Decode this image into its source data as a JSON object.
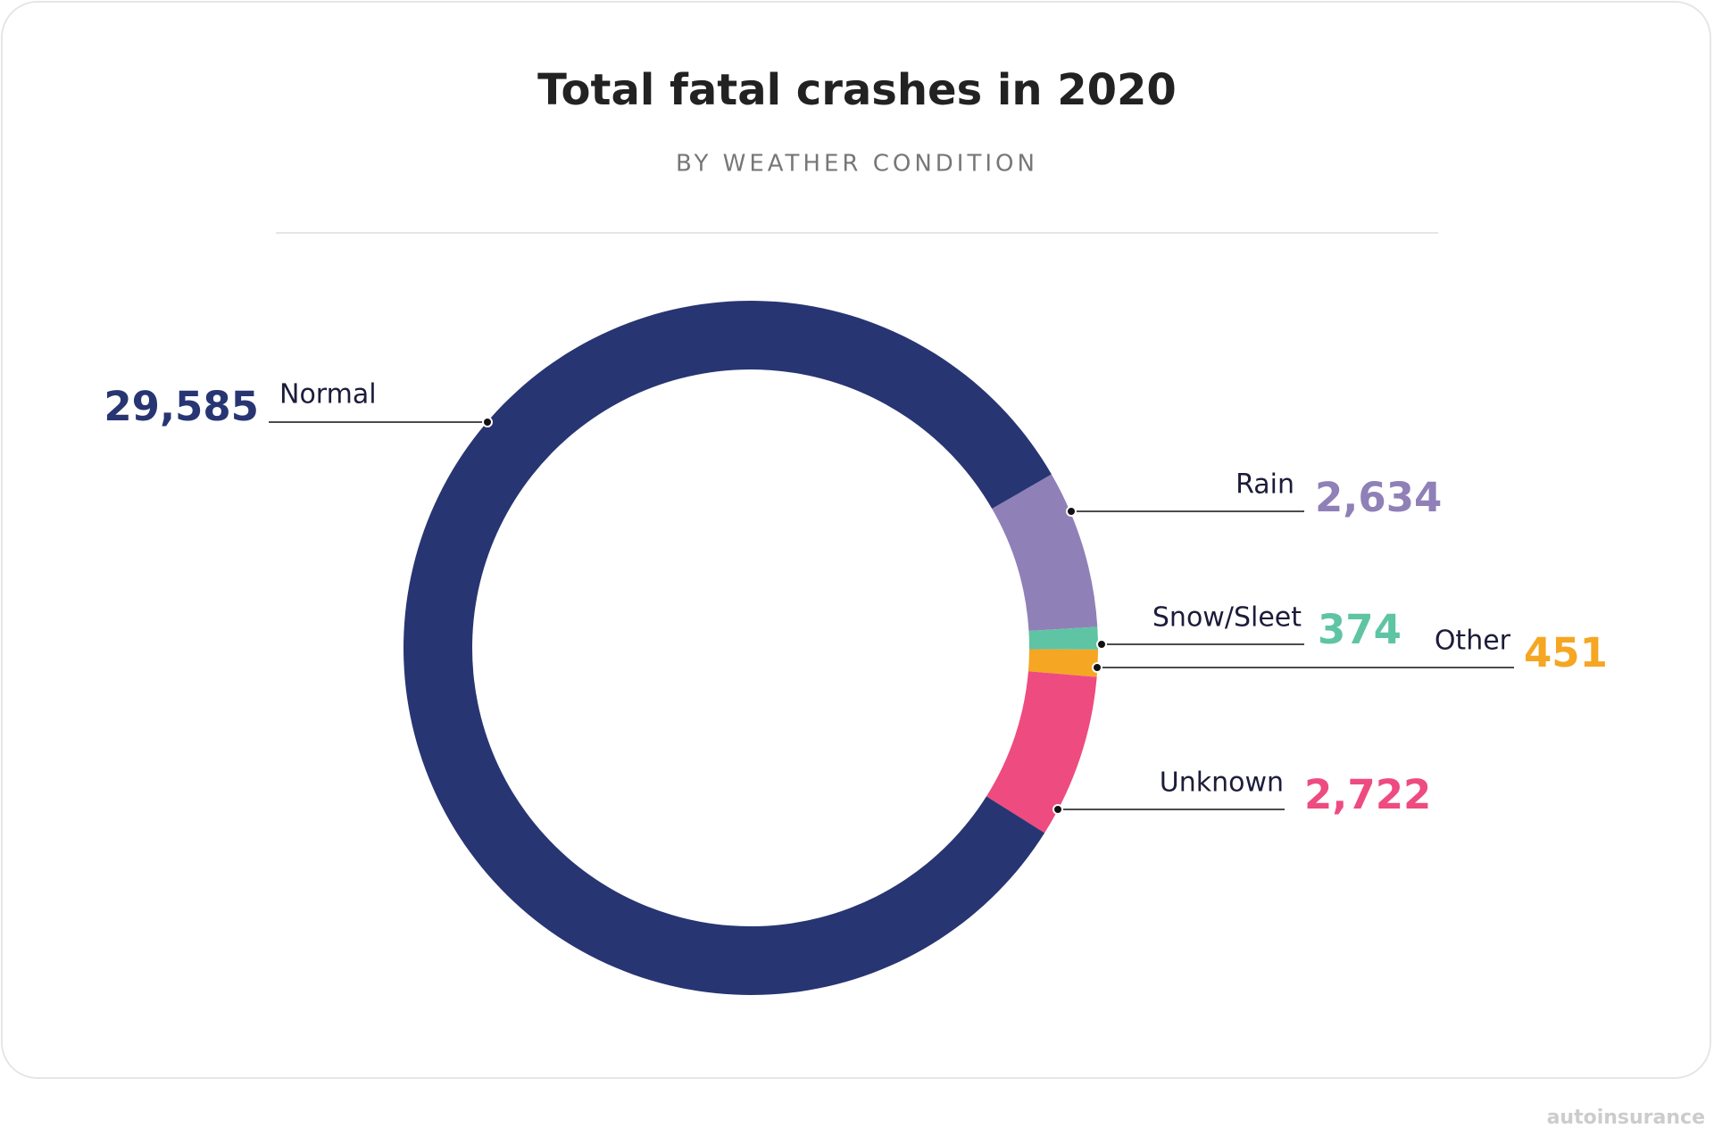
{
  "chart_data": {
    "type": "pie",
    "donut": true,
    "title": "Total fatal crashes in 2020",
    "subtitle": "BY WEATHER CONDITION",
    "categories": [
      "Rain",
      "Snow/Sleet",
      "Other",
      "Unknown",
      "Normal"
    ],
    "values": [
      2634,
      374,
      451,
      2722,
      29585
    ],
    "value_labels": [
      "2,634",
      "374",
      "451",
      "2,722",
      "29,585"
    ],
    "colors": [
      "#9080b8",
      "#5ec4a4",
      "#f5a623",
      "#ee4b80",
      "#283573"
    ]
  },
  "watermark": "autoinsurance"
}
